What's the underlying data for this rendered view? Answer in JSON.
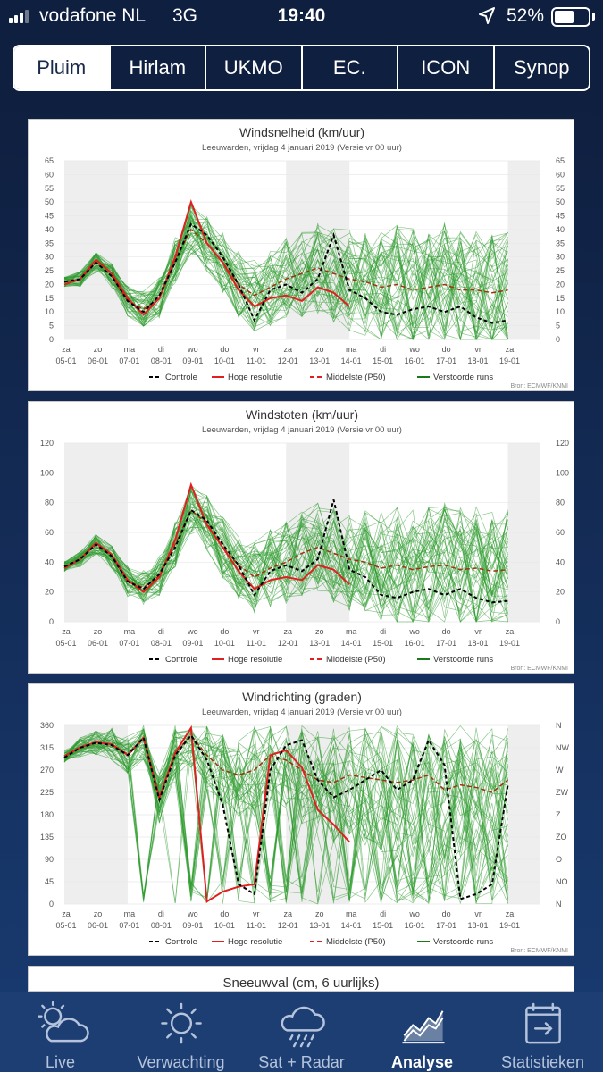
{
  "status": {
    "carrier": "vodafone NL",
    "network": "3G",
    "time": "19:40",
    "battery": "52%",
    "battery_level": 0.52
  },
  "tabs": [
    {
      "label": "Pluim",
      "active": true
    },
    {
      "label": "Hirlam"
    },
    {
      "label": "UKMO"
    },
    {
      "label": "EC."
    },
    {
      "label": "ICON"
    },
    {
      "label": "Synop"
    }
  ],
  "common": {
    "day_labels": [
      "za",
      "zo",
      "ma",
      "di",
      "wo",
      "do",
      "vr",
      "za",
      "zo",
      "ma",
      "di",
      "wo",
      "do",
      "vr",
      "za"
    ],
    "date_labels": [
      "05-01",
      "06-01",
      "07-01",
      "08-01",
      "09-01",
      "10-01",
      "11-01",
      "12-01",
      "13-01",
      "14-01",
      "15-01",
      "16-01",
      "17-01",
      "18-01",
      "19-01"
    ],
    "legend": [
      "Controle",
      "Hoge resolutie",
      "Middelste (P50)",
      "Verstoorde runs"
    ],
    "source": "Bron: ECMWF/KNMI",
    "subtitle": "Leeuwarden, vrijdag 4 januari 2019 (Versie vr 00 uur)"
  },
  "chart_data": [
    {
      "type": "line",
      "title": "Windsnelheid (km/uur)",
      "ylim": [
        0,
        65
      ],
      "yticks": [
        0,
        5,
        10,
        15,
        20,
        25,
        30,
        35,
        40,
        45,
        50,
        55,
        60,
        65
      ],
      "yticks_right": [
        "0",
        "5",
        "10",
        "15",
        "20",
        "25",
        "30",
        "35",
        "40",
        "45",
        "50",
        "55",
        "60",
        "65"
      ],
      "x_days": [
        0,
        0.5,
        1,
        1.5,
        2,
        2.5,
        3,
        3.5,
        4,
        4.5,
        5,
        5.5,
        6,
        6.5,
        7,
        7.5,
        8,
        8.5,
        9,
        9.5,
        10,
        10.5,
        11,
        11.5,
        12,
        12.5,
        13,
        13.5,
        14
      ],
      "series": [
        {
          "name": "Controle",
          "values": [
            21,
            22,
            28,
            23,
            14,
            10,
            16,
            28,
            42,
            38,
            30,
            20,
            7,
            18,
            20,
            17,
            22,
            38,
            18,
            15,
            10,
            9,
            11,
            12,
            10,
            12,
            8,
            6,
            7
          ]
        },
        {
          "name": "Hoge resolutie",
          "values": [
            20,
            22,
            29,
            24,
            15,
            9,
            15,
            30,
            50,
            35,
            28,
            18,
            12,
            15,
            16,
            14,
            19,
            17,
            12
          ]
        },
        {
          "name": "Middelste (P50)",
          "values": [
            21,
            22,
            28,
            23,
            14,
            11,
            15,
            29,
            40,
            35,
            28,
            20,
            16,
            19,
            22,
            24,
            26,
            24,
            22,
            21,
            19,
            20,
            18,
            19,
            20,
            18,
            18,
            17,
            18
          ]
        }
      ]
    },
    {
      "type": "line",
      "title": "Windstoten (km/uur)",
      "ylim": [
        0,
        120
      ],
      "yticks": [
        0,
        20,
        40,
        60,
        80,
        100,
        120
      ],
      "yticks_right": [
        "0",
        "20",
        "40",
        "60",
        "80",
        "100",
        "120"
      ],
      "x_days": [
        0,
        0.5,
        1,
        1.5,
        2,
        2.5,
        3,
        3.5,
        4,
        4.5,
        5,
        5.5,
        6,
        6.5,
        7,
        7.5,
        8,
        8.5,
        9,
        9.5,
        10,
        10.5,
        11,
        11.5,
        12,
        12.5,
        13,
        13.5,
        14
      ],
      "series": [
        {
          "name": "Controle",
          "values": [
            37,
            42,
            52,
            44,
            27,
            22,
            32,
            50,
            75,
            68,
            52,
            38,
            18,
            34,
            38,
            34,
            42,
            82,
            35,
            30,
            18,
            16,
            20,
            22,
            18,
            22,
            16,
            13,
            14
          ]
        },
        {
          "name": "Hoge resolutie",
          "values": [
            36,
            42,
            53,
            45,
            28,
            20,
            30,
            55,
            92,
            65,
            50,
            34,
            22,
            28,
            30,
            28,
            38,
            35,
            25
          ]
        },
        {
          "name": "Middelste (P50)",
          "values": [
            37,
            42,
            52,
            44,
            27,
            23,
            31,
            52,
            75,
            66,
            50,
            38,
            30,
            36,
            40,
            46,
            50,
            46,
            42,
            40,
            36,
            38,
            35,
            37,
            38,
            35,
            36,
            34,
            35
          ]
        }
      ]
    },
    {
      "type": "line",
      "title": "Windrichting (graden)",
      "ylim": [
        0,
        360
      ],
      "yticks": [
        0,
        45,
        90,
        135,
        180,
        225,
        270,
        315,
        360
      ],
      "yticks_right": [
        "N",
        "NO",
        "O",
        "ZO",
        "Z",
        "ZW",
        "W",
        "NW",
        "N"
      ],
      "x_days": [
        0,
        0.5,
        1,
        1.5,
        2,
        2.5,
        3,
        3.5,
        4,
        4.5,
        5,
        5.5,
        6,
        6.5,
        7,
        7.5,
        8,
        8.5,
        9,
        9.5,
        10,
        10.5,
        11,
        11.5,
        12,
        12.5,
        13,
        13.5,
        14
      ],
      "series": [
        {
          "name": "Controle",
          "values": [
            295,
            315,
            325,
            320,
            300,
            335,
            210,
            300,
            340,
            290,
            200,
            40,
            20,
            270,
            320,
            330,
            250,
            215,
            230,
            250,
            270,
            230,
            250,
            330,
            280,
            10,
            20,
            40,
            240
          ]
        },
        {
          "name": "Hoge resolutie",
          "values": [
            298,
            316,
            326,
            322,
            300,
            335,
            215,
            305,
            355,
            5,
            25,
            35,
            40,
            300,
            310,
            275,
            190,
            160,
            125
          ]
        },
        {
          "name": "Middelste (P50)",
          "values": [
            298,
            316,
            326,
            322,
            302,
            335,
            212,
            305,
            340,
            300,
            270,
            260,
            270,
            300,
            290,
            270,
            250,
            245,
            260,
            255,
            250,
            245,
            250,
            260,
            230,
            240,
            235,
            225,
            250
          ]
        }
      ]
    },
    {
      "type": "line",
      "title": "Sneeuwval (cm, 6 uurlijks)"
    }
  ],
  "bottom_nav": [
    {
      "label": "Live",
      "icon": "cloud-sun-icon"
    },
    {
      "label": "Verwachting",
      "icon": "sun-icon"
    },
    {
      "label": "Sat + Radar",
      "icon": "cloud-rain-icon"
    },
    {
      "label": "Analyse",
      "icon": "chart-icon",
      "active": true
    },
    {
      "label": "Statistieken",
      "icon": "calendar-icon"
    }
  ],
  "colors": {
    "control": "#000000",
    "hires": "#e02020",
    "median": "#a03010",
    "ensemble": "#2e9a2e",
    "weekend_band": "#eeeeee"
  }
}
